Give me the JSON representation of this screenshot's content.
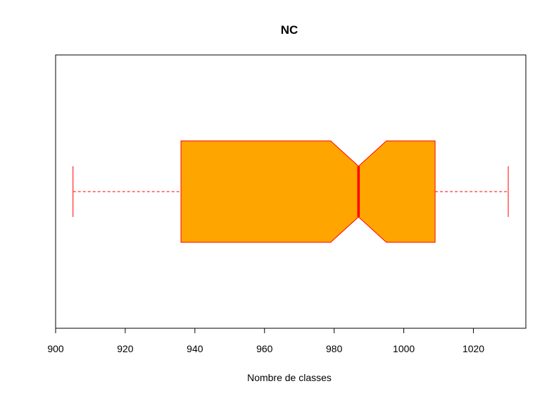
{
  "chart_data": {
    "type": "boxplot",
    "orientation": "horizontal",
    "notched": true,
    "title": "NC",
    "xlabel": "Nombre de classes",
    "ylabel": "",
    "xlim": [
      900,
      1035
    ],
    "x_ticks": [
      900,
      920,
      940,
      960,
      980,
      1000,
      1020
    ],
    "x_tick_labels": [
      "900",
      "920",
      "940",
      "960",
      "980",
      "1000",
      "1020"
    ],
    "grid": false,
    "legend": "none",
    "box": {
      "whisker_low": 905,
      "q1": 936,
      "median": 987,
      "q3": 1009,
      "whisker_high": 1030,
      "notch_low": 979,
      "notch_high": 995
    },
    "colors": {
      "box_fill": "#FFA500",
      "border": "#FF0000",
      "median": "#FF0000",
      "axis": "#000000"
    }
  }
}
